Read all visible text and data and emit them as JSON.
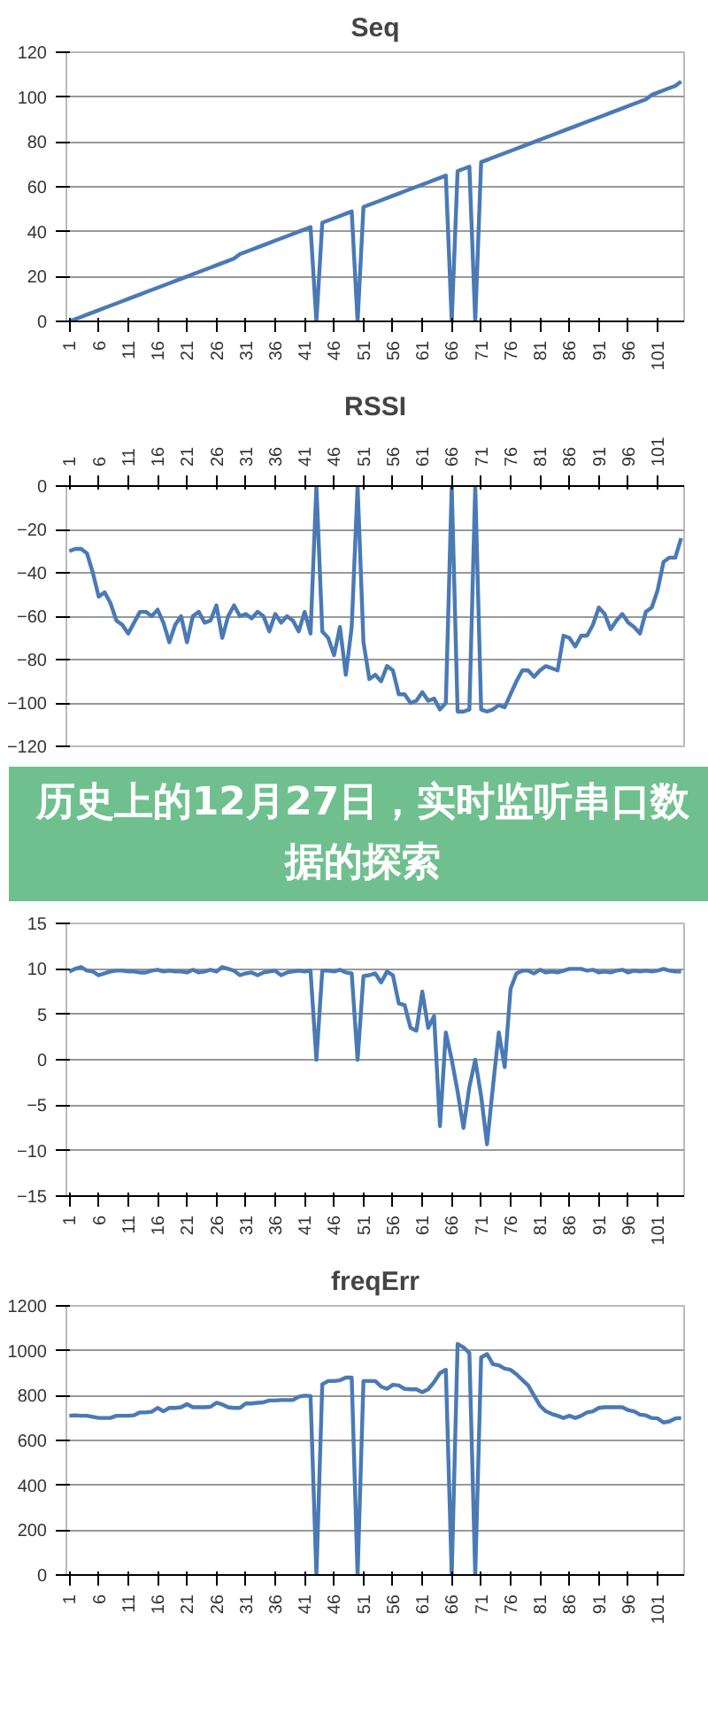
{
  "chart_data": [
    {
      "type": "line",
      "title": "Seq",
      "color": "#4a7ab5",
      "grid": "y",
      "line_style": "solid",
      "xlim": [
        0.5,
        105.5
      ],
      "xticks": [
        1,
        6,
        11,
        16,
        21,
        26,
        31,
        36,
        41,
        46,
        51,
        56,
        61,
        66,
        71,
        76,
        81,
        86,
        91,
        96,
        101
      ],
      "ylim": [
        0,
        120
      ],
      "yticks": [
        0,
        20,
        40,
        60,
        80,
        100,
        120
      ],
      "x": [
        1,
        2,
        3,
        4,
        5,
        6,
        7,
        8,
        9,
        10,
        11,
        12,
        13,
        14,
        15,
        16,
        17,
        18,
        19,
        20,
        21,
        22,
        23,
        24,
        25,
        26,
        27,
        28,
        29,
        30,
        31,
        32,
        33,
        34,
        35,
        36,
        37,
        38,
        39,
        40,
        41,
        42,
        43,
        44,
        45,
        46,
        47,
        48,
        49,
        50,
        51,
        52,
        53,
        54,
        55,
        56,
        57,
        58,
        59,
        60,
        61,
        62,
        63,
        64,
        65,
        66,
        67,
        68,
        69,
        70,
        71,
        72,
        73,
        74,
        75,
        76,
        77,
        78,
        79,
        80,
        81,
        82,
        83,
        84,
        85,
        86,
        87,
        88,
        89,
        90,
        91,
        92,
        93,
        94,
        95,
        96,
        97,
        98,
        99,
        100,
        101,
        102,
        103,
        104,
        105
      ],
      "values": [
        0,
        1,
        2,
        3,
        4,
        5,
        6,
        7,
        8,
        9,
        10,
        11,
        12,
        13,
        14,
        15,
        16,
        17,
        18,
        19,
        20,
        21,
        22,
        23,
        24,
        25,
        26,
        27,
        28,
        30,
        31,
        32,
        33,
        34,
        35,
        36,
        37,
        38,
        39,
        40,
        41,
        42,
        0,
        44,
        45,
        46,
        47,
        48,
        49,
        0,
        51,
        52,
        53,
        54,
        55,
        56,
        57,
        58,
        59,
        60,
        61,
        62,
        63,
        64,
        65,
        0,
        67,
        68,
        69,
        0,
        71,
        72,
        73,
        74,
        75,
        76,
        77,
        78,
        79,
        80,
        81,
        82,
        83,
        84,
        85,
        86,
        87,
        88,
        89,
        90,
        91,
        92,
        93,
        94,
        95,
        96,
        97,
        98,
        99,
        101,
        102,
        103,
        104,
        105,
        107
      ]
    },
    {
      "type": "line",
      "title": "RSSI",
      "color": "#4a7ab5",
      "grid": "y",
      "line_style": "solid",
      "xlim": [
        0.5,
        105.5
      ],
      "xticks": [
        1,
        6,
        11,
        16,
        21,
        26,
        31,
        36,
        41,
        46,
        51,
        56,
        61,
        66,
        71,
        76,
        81,
        86,
        91,
        96,
        101
      ],
      "ylim": [
        -120,
        0
      ],
      "yticks": [
        -120,
        -100,
        -80,
        -60,
        -40,
        -20,
        0
      ],
      "x": [
        1,
        2,
        3,
        4,
        5,
        6,
        7,
        8,
        9,
        10,
        11,
        12,
        13,
        14,
        15,
        16,
        17,
        18,
        19,
        20,
        21,
        22,
        23,
        24,
        25,
        26,
        27,
        28,
        29,
        30,
        31,
        32,
        33,
        34,
        35,
        36,
        37,
        38,
        39,
        40,
        41,
        42,
        43,
        44,
        45,
        46,
        47,
        48,
        49,
        50,
        51,
        52,
        53,
        54,
        55,
        56,
        57,
        58,
        59,
        60,
        61,
        62,
        63,
        64,
        65,
        66,
        67,
        68,
        69,
        70,
        71,
        72,
        73,
        74,
        75,
        76,
        77,
        78,
        79,
        80,
        81,
        82,
        83,
        84,
        85,
        86,
        87,
        88,
        89,
        90,
        91,
        92,
        93,
        94,
        95,
        96,
        97,
        98,
        99,
        100,
        101,
        102,
        103,
        104,
        105
      ],
      "values": [
        -30,
        -29,
        -29,
        -31,
        -40,
        -51,
        -49,
        -54,
        -62,
        -64,
        -68,
        -63,
        -58,
        -58,
        -60,
        -57,
        -63,
        -72,
        -64,
        -60,
        -72,
        -60,
        -58,
        -63,
        -62,
        -55,
        -70,
        -60,
        -55,
        -60,
        -59,
        -61,
        -58,
        -60,
        -67,
        -59,
        -63,
        -60,
        -62,
        -67,
        -58,
        -68,
        0,
        -67,
        -70,
        -78,
        -65,
        -87,
        -65,
        0,
        -72,
        -89,
        -87,
        -90,
        -83,
        -85,
        -96,
        -96,
        -100,
        -99,
        -95,
        -99,
        -98,
        -103,
        -100,
        0,
        -104,
        -104,
        -103,
        0,
        -103,
        -104,
        -103,
        -101,
        -102,
        -96,
        -90,
        -85,
        -85,
        -88,
        -85,
        -83,
        -84,
        -85,
        -69,
        -70,
        -74,
        -69,
        -69,
        -64,
        -56,
        -59,
        -66,
        -62,
        -59,
        -63,
        -65,
        -68,
        -58,
        -56,
        -48,
        -35,
        -33,
        -33,
        -24
      ]
    },
    {
      "type": "line",
      "annotations": [
        "历史上的12月27日，实时监听串口数据的探索"
      ],
      "color": "#4a7ab5",
      "grid": "y",
      "line_style": "solid",
      "xlim": [
        0.5,
        105.5
      ],
      "xticks": [
        1,
        6,
        11,
        16,
        21,
        26,
        31,
        36,
        41,
        46,
        51,
        56,
        61,
        66,
        71,
        76,
        81,
        86,
        91,
        96,
        101
      ],
      "ylim": [
        -15,
        15
      ],
      "yticks": [
        -15,
        -10,
        -5,
        0,
        5,
        10,
        15
      ],
      "x": [
        1,
        2,
        3,
        4,
        5,
        6,
        7,
        8,
        9,
        10,
        11,
        12,
        13,
        14,
        15,
        16,
        17,
        18,
        19,
        20,
        21,
        22,
        23,
        24,
        25,
        26,
        27,
        28,
        29,
        30,
        31,
        32,
        33,
        34,
        35,
        36,
        37,
        38,
        39,
        40,
        41,
        42,
        43,
        44,
        45,
        46,
        47,
        48,
        49,
        50,
        51,
        52,
        53,
        54,
        55,
        56,
        57,
        58,
        59,
        60,
        61,
        62,
        63,
        64,
        65,
        66,
        67,
        68,
        69,
        70,
        71,
        72,
        73,
        74,
        75,
        76,
        77,
        78,
        79,
        80,
        81,
        82,
        83,
        84,
        85,
        86,
        87,
        88,
        89,
        90,
        91,
        92,
        93,
        94,
        95,
        96,
        97,
        98,
        99,
        100,
        101,
        102,
        103,
        104,
        105
      ],
      "values": [
        9.7,
        10,
        10.2,
        9.8,
        9.7,
        9.3,
        9.5,
        9.7,
        9.8,
        9.8,
        9.7,
        9.7,
        9.6,
        9.6,
        9.8,
        9.9,
        9.7,
        9.8,
        9.7,
        9.7,
        9.6,
        9.9,
        9.6,
        9.7,
        9.9,
        9.7,
        10.2,
        10,
        9.8,
        9.3,
        9.5,
        9.6,
        9.3,
        9.6,
        9.7,
        9.8,
        9.3,
        9.6,
        9.7,
        9.8,
        9.7,
        9.8,
        0,
        9.8,
        9.8,
        9.7,
        9.9,
        9.6,
        9.5,
        0,
        9.2,
        9.3,
        9.5,
        8.5,
        9.7,
        9.3,
        6.2,
        6,
        3.5,
        3.2,
        7.5,
        3.5,
        4.8,
        -7.3,
        3,
        0,
        -3.5,
        -7.5,
        -3,
        0,
        -4,
        -9.3,
        -3,
        3,
        -0.8,
        7.8,
        9.5,
        9.8,
        9.8,
        9.5,
        9.9,
        9.6,
        9.7,
        9.6,
        9.8,
        10,
        10,
        10,
        9.8,
        9.9,
        9.6,
        9.7,
        9.6,
        9.8,
        9.9,
        9.6,
        9.8,
        9.7,
        9.8,
        9.7,
        9.8,
        10,
        9.8,
        9.7,
        9.7
      ]
    },
    {
      "type": "line",
      "title": "freqErr",
      "color": "#4a7ab5",
      "grid": "y",
      "line_style": "solid",
      "xlim": [
        0.5,
        105.5
      ],
      "xticks": [
        1,
        6,
        11,
        16,
        21,
        26,
        31,
        36,
        41,
        46,
        51,
        56,
        61,
        66,
        71,
        76,
        81,
        86,
        91,
        96,
        101
      ],
      "ylim": [
        0,
        1200
      ],
      "yticks": [
        0,
        200,
        400,
        600,
        800,
        1000,
        1200
      ],
      "x": [
        1,
        2,
        3,
        4,
        5,
        6,
        7,
        8,
        9,
        10,
        11,
        12,
        13,
        14,
        15,
        16,
        17,
        18,
        19,
        20,
        21,
        22,
        23,
        24,
        25,
        26,
        27,
        28,
        29,
        30,
        31,
        32,
        33,
        34,
        35,
        36,
        37,
        38,
        39,
        40,
        41,
        42,
        43,
        44,
        45,
        46,
        47,
        48,
        49,
        50,
        51,
        52,
        53,
        54,
        55,
        56,
        57,
        58,
        59,
        60,
        61,
        62,
        63,
        64,
        65,
        66,
        67,
        68,
        69,
        70,
        71,
        72,
        73,
        74,
        75,
        76,
        77,
        78,
        79,
        80,
        81,
        82,
        83,
        84,
        85,
        86,
        87,
        88,
        89,
        90,
        91,
        92,
        93,
        94,
        95,
        96,
        97,
        98,
        99,
        100,
        101,
        102,
        103,
        104,
        105
      ],
      "values": [
        710,
        712,
        710,
        710,
        705,
        700,
        700,
        700,
        710,
        710,
        710,
        712,
        725,
        725,
        728,
        745,
        730,
        745,
        745,
        748,
        762,
        748,
        748,
        748,
        750,
        768,
        760,
        748,
        745,
        745,
        765,
        765,
        768,
        770,
        778,
        778,
        780,
        780,
        780,
        795,
        800,
        798,
        0,
        850,
        865,
        865,
        868,
        880,
        880,
        0,
        865,
        865,
        865,
        840,
        830,
        848,
        845,
        830,
        828,
        828,
        815,
        828,
        860,
        900,
        915,
        0,
        1030,
        1015,
        990,
        0,
        970,
        985,
        940,
        935,
        920,
        915,
        895,
        870,
        845,
        800,
        755,
        730,
        718,
        710,
        700,
        710,
        700,
        710,
        725,
        730,
        745,
        748,
        748,
        748,
        748,
        735,
        730,
        715,
        712,
        700,
        698,
        680,
        685,
        698,
        700
      ]
    }
  ]
}
